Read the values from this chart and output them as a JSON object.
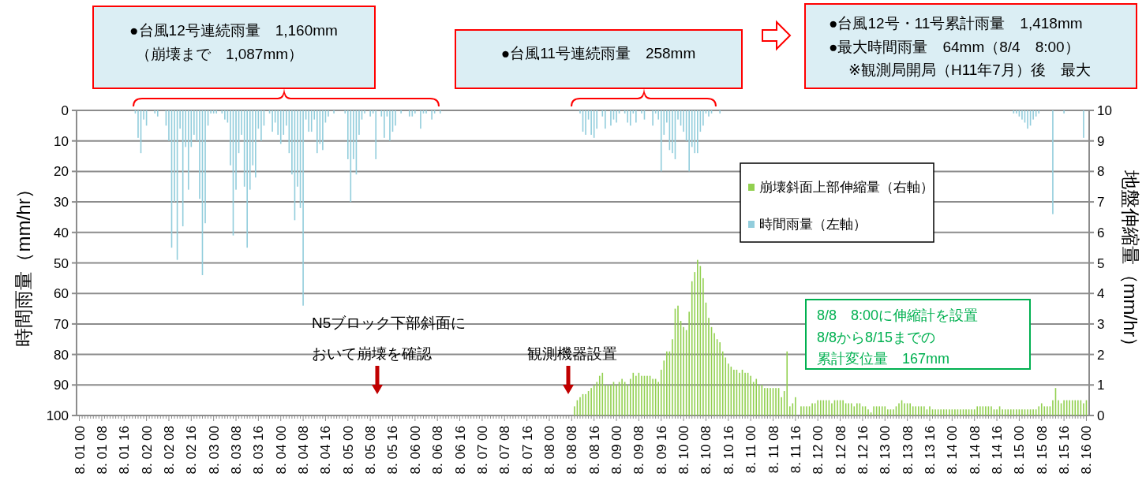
{
  "chart_data": {
    "type": "bar",
    "categories": [
      "8. 01 00",
      null,
      null,
      null,
      null,
      null,
      null,
      null,
      "8. 01 08",
      null,
      null,
      null,
      null,
      null,
      null,
      null,
      "8. 01 16",
      null,
      null,
      null,
      null,
      null,
      null,
      null,
      "8. 02 00",
      null,
      null,
      null,
      null,
      null,
      null,
      null,
      "8. 02 08",
      null,
      null,
      null,
      null,
      null,
      null,
      null,
      "8. 02 16",
      null,
      null,
      null,
      null,
      null,
      null,
      null,
      "8. 03 00",
      null,
      null,
      null,
      null,
      null,
      null,
      null,
      "8. 03 08",
      null,
      null,
      null,
      null,
      null,
      null,
      null,
      "8. 03 16",
      null,
      null,
      null,
      null,
      null,
      null,
      null,
      "8. 04 00",
      null,
      null,
      null,
      null,
      null,
      null,
      null,
      "8. 04 08",
      null,
      null,
      null,
      null,
      null,
      null,
      null,
      "8. 04 16",
      null,
      null,
      null,
      null,
      null,
      null,
      null,
      "8. 05 00",
      null,
      null,
      null,
      null,
      null,
      null,
      null,
      "8. 05 08",
      null,
      null,
      null,
      null,
      null,
      null,
      null,
      "8. 05 16",
      null,
      null,
      null,
      null,
      null,
      null,
      null,
      "8. 06 00",
      null,
      null,
      null,
      null,
      null,
      null,
      null,
      "8. 06 08",
      null,
      null,
      null,
      null,
      null,
      null,
      null,
      "8. 06 16",
      null,
      null,
      null,
      null,
      null,
      null,
      null,
      "8. 07 00",
      null,
      null,
      null,
      null,
      null,
      null,
      null,
      "8. 07 08",
      null,
      null,
      null,
      null,
      null,
      null,
      null,
      "8. 07 16",
      null,
      null,
      null,
      null,
      null,
      null,
      null,
      "8. 08 00",
      null,
      null,
      null,
      null,
      null,
      null,
      null,
      "8. 08 08",
      null,
      null,
      null,
      null,
      null,
      null,
      null,
      "8. 08 16",
      null,
      null,
      null,
      null,
      null,
      null,
      null,
      "8. 09 00",
      null,
      null,
      null,
      null,
      null,
      null,
      null,
      "8. 09 08",
      null,
      null,
      null,
      null,
      null,
      null,
      null,
      "8. 09 16",
      null,
      null,
      null,
      null,
      null,
      null,
      null,
      "8. 10 00",
      null,
      null,
      null,
      null,
      null,
      null,
      null,
      "8. 10 08",
      null,
      null,
      null,
      null,
      null,
      null,
      null,
      "8. 10 16",
      null,
      null,
      null,
      null,
      null,
      null,
      null,
      "8. 11 00",
      null,
      null,
      null,
      null,
      null,
      null,
      null,
      "8. 11 08",
      null,
      null,
      null,
      null,
      null,
      null,
      null,
      "8. 11 16",
      null,
      null,
      null,
      null,
      null,
      null,
      null,
      "8. 12 00",
      null,
      null,
      null,
      null,
      null,
      null,
      null,
      "8. 12 08",
      null,
      null,
      null,
      null,
      null,
      null,
      null,
      "8. 12 16",
      null,
      null,
      null,
      null,
      null,
      null,
      null,
      "8. 13 00",
      null,
      null,
      null,
      null,
      null,
      null,
      null,
      "8. 13 08",
      null,
      null,
      null,
      null,
      null,
      null,
      null,
      "8. 13 16",
      null,
      null,
      null,
      null,
      null,
      null,
      null,
      "8. 14 00",
      null,
      null,
      null,
      null,
      null,
      null,
      null,
      "8. 14 08",
      null,
      null,
      null,
      null,
      null,
      null,
      null,
      "8. 14 16",
      null,
      null,
      null,
      null,
      null,
      null,
      null,
      "8. 15 00",
      null,
      null,
      null,
      null,
      null,
      null,
      null,
      "8. 15 08",
      null,
      null,
      null,
      null,
      null,
      null,
      null,
      "8. 15 16",
      null,
      null,
      null,
      null,
      null,
      null,
      null,
      "8. 16 00"
    ],
    "ylim": [
      100,
      0
    ],
    "yticks": [
      0,
      10,
      20,
      30,
      40,
      50,
      60,
      70,
      80,
      90,
      100
    ],
    "y2lim": [
      0,
      10
    ],
    "y2ticks": [
      0,
      1,
      2,
      3,
      4,
      5,
      6,
      7,
      8,
      9,
      10
    ],
    "ylabel": "時間雨量（mm/hr）",
    "y2label": "地盤伸縮量（mm/hr）",
    "grid": "y",
    "legend": "top right",
    "series": [
      {
        "name": "崩壊斜面上部伸縮量（右軸）",
        "color": "#92d050",
        "axis": "y2",
        "values": [
          null,
          null,
          null,
          null,
          null,
          null,
          null,
          null,
          null,
          null,
          null,
          null,
          null,
          null,
          null,
          null,
          null,
          null,
          null,
          null,
          null,
          null,
          null,
          null,
          null,
          null,
          null,
          null,
          null,
          null,
          null,
          null,
          null,
          null,
          null,
          null,
          null,
          null,
          null,
          null,
          null,
          null,
          null,
          null,
          null,
          null,
          null,
          null,
          null,
          null,
          null,
          null,
          null,
          null,
          null,
          null,
          null,
          null,
          null,
          null,
          null,
          null,
          null,
          null,
          null,
          null,
          null,
          null,
          null,
          null,
          null,
          null,
          null,
          null,
          null,
          null,
          null,
          null,
          null,
          null,
          null,
          null,
          null,
          null,
          null,
          null,
          null,
          null,
          null,
          null,
          null,
          null,
          null,
          null,
          null,
          null,
          null,
          null,
          null,
          null,
          null,
          null,
          null,
          null,
          null,
          null,
          null,
          null,
          null,
          null,
          null,
          null,
          null,
          null,
          null,
          null,
          null,
          null,
          null,
          null,
          null,
          null,
          null,
          null,
          null,
          null,
          null,
          null,
          null,
          null,
          null,
          null,
          null,
          null,
          null,
          null,
          null,
          null,
          null,
          null,
          null,
          null,
          null,
          null,
          null,
          null,
          null,
          null,
          null,
          null,
          null,
          null,
          null,
          null,
          null,
          null,
          null,
          null,
          null,
          null,
          null,
          null,
          null,
          null,
          null,
          null,
          null,
          null,
          null,
          null,
          null,
          null,
          null,
          null,
          null,
          null,
          null,
          0.3,
          0.5,
          0.6,
          0.7,
          0.7,
          0.8,
          0.9,
          1.0,
          1.1,
          1.3,
          1.4,
          1.0,
          1.0,
          1.0,
          1.1,
          1.0,
          1.1,
          1.2,
          1.1,
          1.0,
          1.2,
          1.4,
          1.3,
          1.4,
          1.3,
          1.3,
          1.3,
          1.3,
          1.2,
          1.2,
          1.1,
          1.5,
          1.8,
          2.1,
          2.1,
          2.5,
          3.5,
          3.6,
          3.1,
          2.9,
          2.8,
          3.4,
          4.4,
          4.7,
          5.1,
          4.9,
          4.5,
          3.7,
          3.2,
          2.9,
          2.7,
          2.5,
          2.4,
          2.1,
          1.9,
          1.7,
          1.6,
          1.5,
          1.5,
          1.4,
          1.5,
          1.4,
          1.4,
          1.3,
          1.1,
          1.2,
          1.0,
          1.0,
          0.9,
          0.9,
          0.9,
          0.9,
          0.9,
          0.9,
          0.6,
          0.8,
          2.1,
          0.3,
          0.4,
          0.6,
          0,
          0.3,
          0.3,
          0.3,
          0.3,
          0.4,
          0.4,
          0.5,
          0.5,
          0.5,
          0.5,
          0.5,
          0.4,
          0.5,
          0.5,
          0.5,
          0.5,
          0.4,
          0.4,
          0.4,
          0.3,
          0.4,
          0.4,
          0.3,
          0.3,
          0.2,
          0.1,
          0.3,
          0.3,
          0.3,
          0.3,
          0.3,
          0.2,
          0.2,
          0.2,
          0.3,
          0.4,
          0.5,
          0.4,
          0.4,
          0.4,
          0.3,
          0.3,
          0.3,
          0.3,
          0.3,
          0.2,
          0.3,
          0.2,
          0.2,
          0.2,
          0.2,
          0.2,
          0.2,
          0.2,
          0.2,
          0.2,
          0.2,
          0.2,
          0.2,
          0.2,
          0.2,
          0.2,
          0.2,
          0.3,
          0.3,
          0.3,
          0.3,
          0.3,
          0.3,
          0.2,
          0.2,
          0.3,
          0.2,
          0.2,
          0.2,
          0.2,
          0.2,
          0.2,
          0.2,
          0.2,
          0.2,
          0.2,
          0.2,
          0.2,
          0.2,
          0.3,
          0.4,
          0.3,
          0.3,
          0.3,
          0.5,
          0.9,
          0.5,
          0.4,
          0.5,
          0.5,
          0.5,
          0.5,
          0.5,
          0.5,
          0.5,
          0.4,
          0.5
        ]
      },
      {
        "name": "時間雨量（左軸）",
        "color": "#92cddc",
        "values": [
          0,
          0,
          0,
          0,
          0,
          0,
          0,
          0,
          0,
          0,
          0,
          0,
          0,
          0,
          0,
          0,
          0,
          0,
          0,
          0,
          1,
          9,
          14,
          3,
          5,
          0,
          0,
          1,
          2,
          0,
          0,
          5,
          10,
          45,
          30,
          49,
          6,
          38,
          12,
          26,
          12,
          8,
          10,
          29,
          54,
          37,
          5,
          1,
          1,
          1,
          0,
          1,
          3,
          4,
          18,
          41,
          26,
          14,
          8,
          25,
          45,
          26,
          18,
          22,
          6,
          10,
          5,
          0,
          1,
          7,
          4,
          8,
          11,
          8,
          5,
          14,
          21,
          36,
          25,
          32,
          64,
          3,
          7,
          7,
          3,
          14,
          11,
          13,
          4,
          2,
          0,
          1,
          0,
          0,
          0,
          1,
          16,
          30,
          16,
          21,
          8,
          3,
          1,
          0,
          2,
          1,
          16,
          0,
          2,
          9,
          2,
          10,
          7,
          5,
          0,
          1,
          0,
          0,
          2,
          2,
          1,
          0,
          6,
          1,
          1,
          0,
          3,
          1,
          0,
          1,
          0,
          0,
          0,
          0,
          0,
          0,
          0,
          0,
          0,
          0,
          0,
          0,
          0,
          0,
          0,
          0,
          0,
          0,
          0,
          0,
          0,
          0,
          0,
          0,
          0,
          0,
          0,
          0,
          0,
          0,
          0,
          0,
          0,
          0,
          0,
          0,
          0,
          0,
          0,
          0,
          0,
          0,
          0,
          0,
          0,
          0,
          0,
          0,
          0,
          1,
          7,
          8,
          3,
          8,
          9,
          6,
          0,
          2,
          6,
          0,
          5,
          3,
          4,
          1,
          0,
          1,
          4,
          5,
          1,
          4,
          0,
          1,
          3,
          0,
          0,
          5,
          1,
          3,
          20,
          8,
          4,
          13,
          14,
          16,
          3,
          5,
          7,
          10,
          20,
          12,
          14,
          14,
          7,
          5,
          1,
          2,
          1,
          0,
          0,
          1,
          0,
          0,
          0,
          0,
          0,
          0,
          0,
          0,
          0,
          0,
          0,
          0,
          0,
          0,
          0,
          0,
          0,
          0,
          0,
          0,
          0,
          0,
          0,
          0,
          0,
          0,
          0,
          0,
          0,
          0,
          0,
          0,
          0,
          0,
          0,
          0,
          0,
          0,
          0,
          0,
          0,
          0,
          0,
          0,
          0,
          0,
          0,
          0,
          0,
          0,
          0,
          0,
          0,
          0,
          0,
          0,
          0,
          0,
          0,
          0,
          0,
          0,
          0,
          0,
          0,
          0,
          0,
          0,
          0,
          0,
          0,
          0,
          0,
          0,
          0,
          0,
          0,
          0,
          0,
          0,
          0,
          0,
          0,
          0,
          0,
          0,
          0,
          0,
          0,
          0,
          0,
          0,
          0,
          0,
          0,
          0,
          0,
          0,
          0,
          0,
          0,
          0,
          0,
          0,
          1,
          1,
          2,
          3,
          4,
          6,
          5,
          3,
          2,
          1,
          0,
          0,
          0,
          0,
          34,
          0,
          0,
          0,
          1,
          0,
          0,
          0,
          0,
          0,
          0,
          9,
          0
        ]
      }
    ],
    "annotations": [
      "●台風12号連続雨量　1,160mm",
      "（崩壊まで　1,087mm）",
      "●台風11号連続雨量　258mm",
      "●台風12号・11号累計雨量　1,418mm",
      "●最大時間雨量　64mm（8/4　8:00）",
      "※観測局開局（H11年7月）後　最大",
      "N5ブロック下部斜面に",
      "おいて崩壊を確認",
      "観測機器設置",
      "8/8　8:00に伸縮計を設置",
      "8/8から8/15までの",
      "累計変位量　167mm"
    ]
  }
}
